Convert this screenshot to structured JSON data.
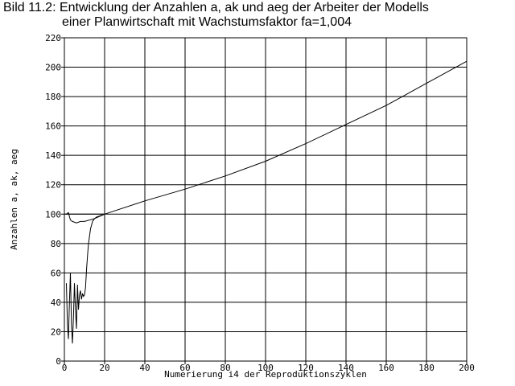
{
  "chart_data": {
    "type": "line",
    "title": "Bild 11.2: Entwicklung der Anzahlen a, ak und aeg der Arbeiter der Modells",
    "subtitle": "einer Planwirtschaft mit Wachstumsfaktor fa=1,004",
    "xlabel": "Numerierung i4 der Reproduktionszyklen",
    "ylabel": "Anzahlen a, ak, aeg",
    "xlim": [
      0,
      200
    ],
    "ylim": [
      0,
      220
    ],
    "x_ticks": [
      "0",
      "20",
      "40",
      "60",
      "80",
      "100",
      "120",
      "140",
      "160",
      "180",
      "200"
    ],
    "y_ticks": [
      "0",
      "20",
      "40",
      "60",
      "80",
      "100",
      "120",
      "140",
      "160",
      "180",
      "200",
      "220"
    ],
    "grid": true,
    "line_color": "#000000",
    "series": [
      {
        "x": [
          0,
          20,
          40,
          60,
          80,
          100,
          120,
          140,
          160,
          180,
          200
        ],
        "y": [
          100,
          100,
          109,
          117,
          126,
          136,
          148,
          161,
          174,
          189,
          204
        ]
      },
      {
        "x": [
          1,
          2,
          3,
          4,
          6,
          8,
          10,
          15,
          20
        ],
        "y": [
          100,
          101,
          96,
          95,
          94,
          95,
          95,
          97,
          100
        ]
      },
      {
        "x": [
          1,
          1.5,
          2,
          2.5,
          3,
          3.5,
          4,
          4.5,
          5,
          5.5,
          6,
          6.5,
          7,
          7.5,
          8,
          8.5,
          9,
          9.5,
          10,
          10.5,
          11,
          11.5,
          12,
          13,
          14,
          15,
          16,
          18,
          20
        ],
        "y": [
          53,
          25,
          15,
          40,
          60,
          25,
          12,
          30,
          53,
          35,
          22,
          52,
          35,
          45,
          48,
          42,
          46,
          44,
          45,
          50,
          62,
          72,
          80,
          90,
          95,
          97,
          98,
          99,
          100
        ]
      }
    ]
  }
}
